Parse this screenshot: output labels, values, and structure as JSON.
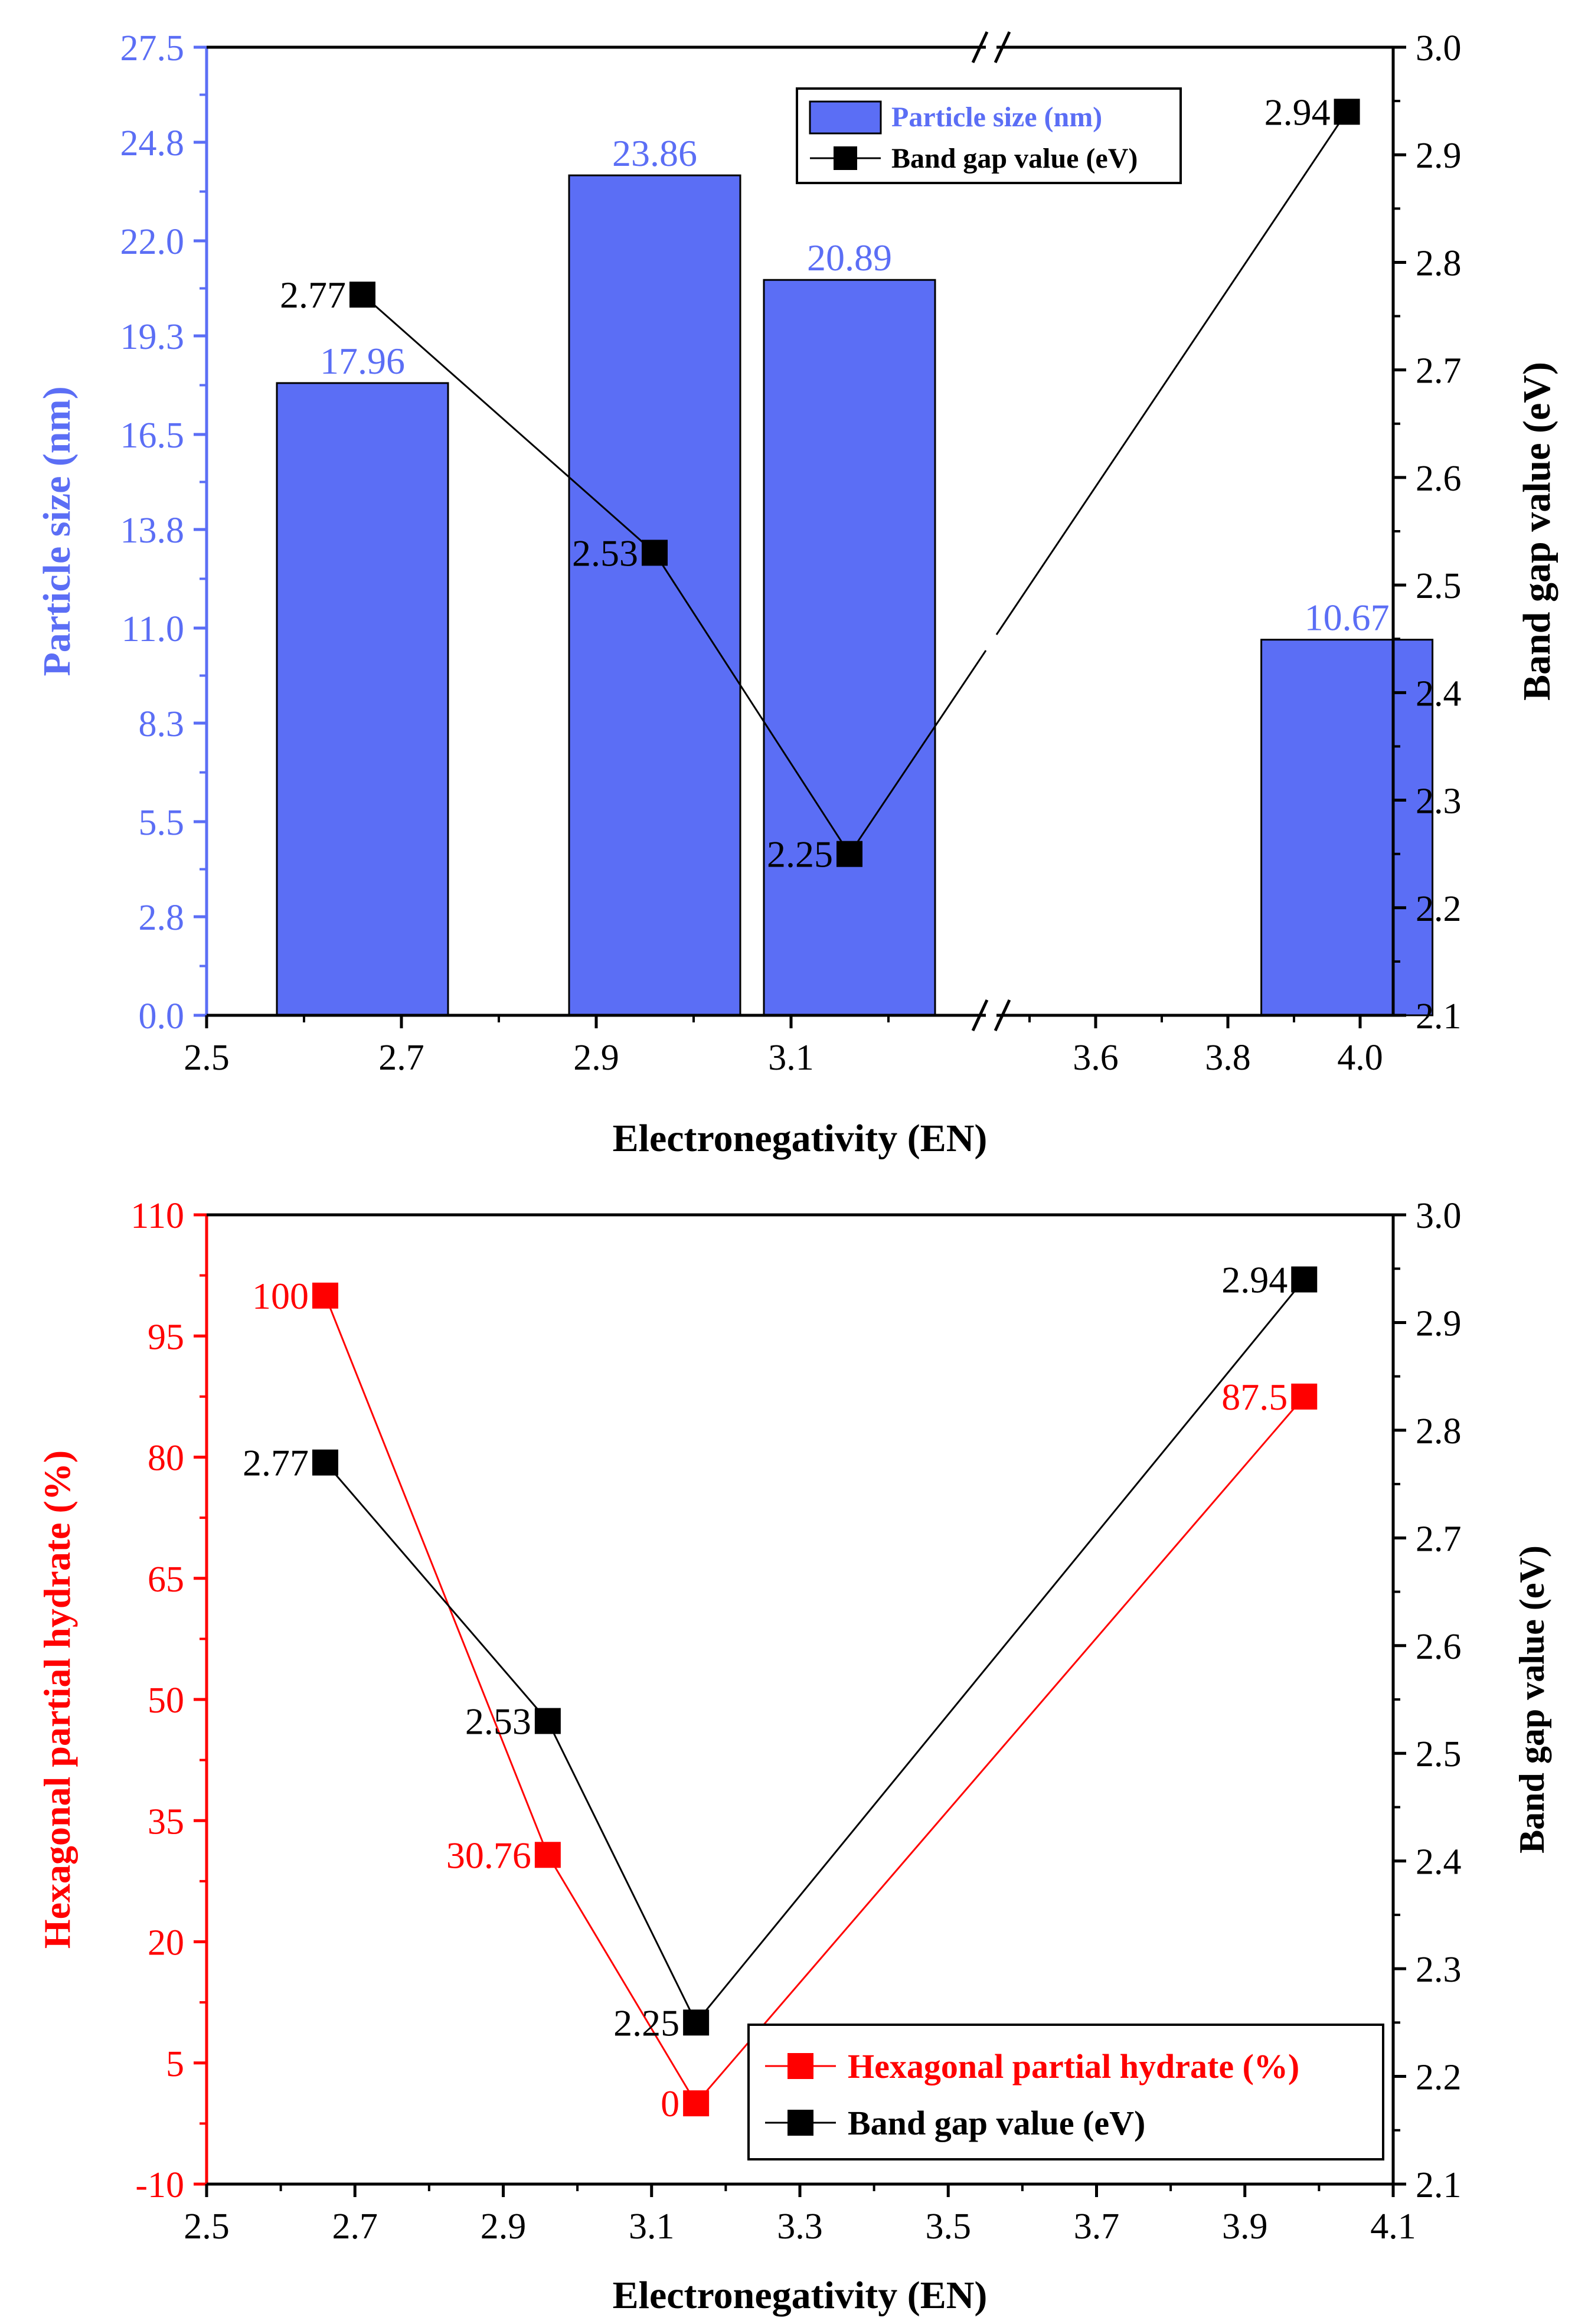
{
  "colors": {
    "bar_fill": "#5b6ef5",
    "bar_stroke": "#000000",
    "blue_axis": "#5b6ef5",
    "red": "#ff0000",
    "black": "#000000"
  },
  "chart_data": [
    {
      "type": "bar+line",
      "title": "",
      "xlabel": "Electronegativity (EN)",
      "ylabel_left": "Particle size (nm)",
      "ylabel_right": "Band gap value (eV)",
      "axis_break": true,
      "x_ticks_left_segment": [
        "2.5",
        "2.7",
        "2.9",
        "3.1"
      ],
      "x_ticks_right_segment": [
        "3.6",
        "3.8",
        "4.0"
      ],
      "x_segments": [
        [
          2.5,
          3.3
        ],
        [
          3.45,
          4.05
        ]
      ],
      "ylim_left": [
        0,
        27.5
      ],
      "y_ticks_left": [
        "0.0",
        "2.8",
        "5.5",
        "8.3",
        "11.0",
        "13.8",
        "16.5",
        "19.3",
        "22.0",
        "24.8",
        "27.5"
      ],
      "ylim_right": [
        2.1,
        3.0
      ],
      "y_ticks_right": [
        "2.1",
        "2.2",
        "2.3",
        "2.4",
        "2.5",
        "2.6",
        "2.7",
        "2.8",
        "2.9",
        "3.0"
      ],
      "bars": {
        "name": "Particle size (nm)",
        "x": [
          2.66,
          2.96,
          3.16,
          3.98
        ],
        "values": [
          17.96,
          23.86,
          20.89,
          10.67
        ],
        "labels": [
          "17.96",
          "23.86",
          "20.89",
          "10.67"
        ]
      },
      "line": {
        "name": "Band gap value (eV)",
        "x": [
          2.66,
          2.96,
          3.16,
          3.98
        ],
        "values": [
          2.77,
          2.53,
          2.25,
          2.94
        ],
        "labels": [
          "2.77",
          "2.53",
          "2.25",
          "2.94"
        ]
      },
      "legend": [
        "Particle size (nm)",
        "Band gap value (eV)"
      ],
      "legend_position": "top-right"
    },
    {
      "type": "line",
      "title": "",
      "xlabel": "Electronegativity (EN)",
      "ylabel_left": "Hexagonal partial hydrate (%)",
      "ylabel_right": "Band gap value (eV)",
      "xlim": [
        2.5,
        4.1
      ],
      "x_ticks": [
        "2.5",
        "2.7",
        "2.9",
        "3.1",
        "3.3",
        "3.5",
        "3.7",
        "3.9",
        "4.1"
      ],
      "ylim_left": [
        -10,
        110
      ],
      "y_ticks_left": [
        "-10",
        "5",
        "20",
        "35",
        "50",
        "65",
        "80",
        "95",
        "110"
      ],
      "ylim_right": [
        2.1,
        3.0
      ],
      "y_ticks_right": [
        "2.1",
        "2.2",
        "2.3",
        "2.4",
        "2.5",
        "2.6",
        "2.7",
        "2.8",
        "2.9",
        "3.0"
      ],
      "series": [
        {
          "name": "Hexagonal partial hydrate (%)",
          "x": [
            2.66,
            2.96,
            3.16,
            3.98
          ],
          "values": [
            100,
            30.76,
            0,
            87.5
          ],
          "labels": [
            "100",
            "30.76",
            "0",
            "87.5"
          ]
        },
        {
          "name": "Band gap value (eV)",
          "x": [
            2.66,
            2.96,
            3.16,
            3.98
          ],
          "values": [
            2.77,
            2.53,
            2.25,
            2.94
          ],
          "labels": [
            "2.77",
            "2.53",
            "2.25",
            "2.94"
          ]
        }
      ],
      "legend": [
        "Hexagonal partial hydrate (%)",
        "Band gap value (eV)"
      ],
      "legend_position": "bottom-right"
    }
  ]
}
